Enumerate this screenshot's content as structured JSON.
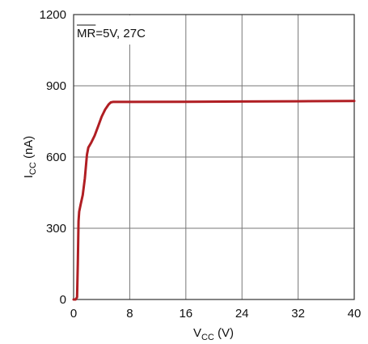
{
  "chart_data": {
    "type": "line",
    "title": "",
    "xlabel": {
      "main": "V",
      "sub": "CC",
      "unit": " (V)"
    },
    "ylabel": {
      "main": "I",
      "sub": "CC",
      "unit": " (nA)"
    },
    "xlim": [
      0,
      40
    ],
    "ylim": [
      0,
      1200
    ],
    "xticks": [
      0,
      8,
      16,
      24,
      32,
      40
    ],
    "yticks": [
      0,
      300,
      600,
      900,
      1200
    ],
    "grid": true,
    "annotation": {
      "overlined": "MR",
      "rest": "=5V, 27C"
    },
    "series": [
      {
        "color": "#b01e23",
        "x": [
          0,
          0.3,
          0.5,
          0.6,
          0.7,
          0.8,
          1.0,
          1.3,
          1.6,
          1.9,
          2.1,
          2.5,
          3.0,
          3.5,
          4.0,
          4.5,
          5.0,
          5.3,
          5.6,
          6.0,
          8,
          16,
          24,
          32,
          40
        ],
        "y": [
          0,
          0,
          10,
          150,
          330,
          370,
          400,
          440,
          510,
          610,
          640,
          660,
          690,
          730,
          770,
          800,
          822,
          830,
          832,
          832,
          832,
          833,
          834,
          835,
          836
        ]
      }
    ]
  }
}
